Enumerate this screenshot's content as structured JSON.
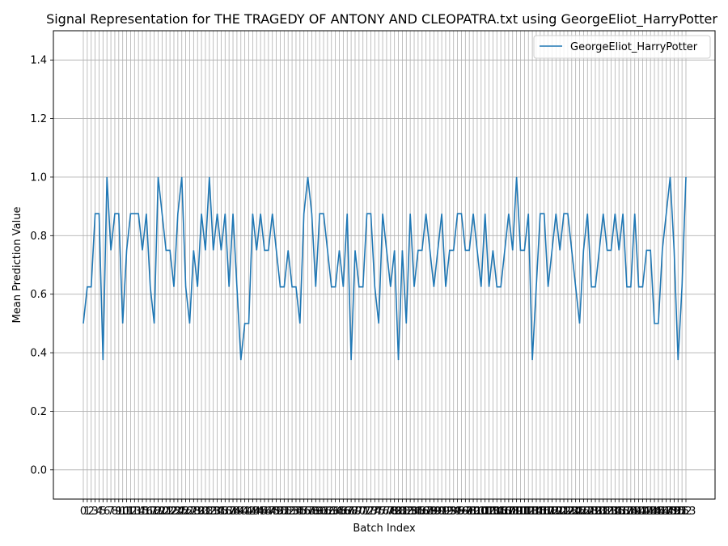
{
  "chart_data": {
    "type": "line",
    "title": "Signal Representation for THE TRAGEDY OF ANTONY AND CLEOPATRA.txt using GeorgeEliot_HarryPotter",
    "xlabel": "Batch Index",
    "ylabel": "Mean Prediction Value",
    "ylim": [
      -0.1,
      1.5
    ],
    "yticks": [
      "0.0",
      "0.2",
      "0.4",
      "0.6",
      "0.8",
      "1.0",
      "1.2",
      "1.4"
    ],
    "grid": true,
    "legend": "top-right",
    "color": "#1f77b4",
    "x_min": 0,
    "x_max": 153,
    "series": [
      {
        "name": "GeorgeEliot_HarryPotter",
        "values": [
          0.5,
          0.625,
          0.625,
          0.875,
          0.875,
          0.375,
          1.0,
          0.75,
          0.875,
          0.875,
          0.5,
          0.75,
          0.875,
          0.875,
          0.875,
          0.75,
          0.875,
          0.625,
          0.5,
          1.0,
          0.875,
          0.75,
          0.75,
          0.625,
          0.875,
          1.0,
          0.625,
          0.5,
          0.75,
          0.625,
          0.875,
          0.75,
          1.0,
          0.75,
          0.875,
          0.75,
          0.875,
          0.625,
          0.875,
          0.625,
          0.375,
          0.5,
          0.5,
          0.875,
          0.75,
          0.875,
          0.75,
          0.75,
          0.875,
          0.75,
          0.625,
          0.625,
          0.75,
          0.625,
          0.625,
          0.5,
          0.875,
          1.0,
          0.875,
          0.625,
          0.875,
          0.875,
          0.75,
          0.625,
          0.625,
          0.75,
          0.625,
          0.875,
          0.375,
          0.75,
          0.625,
          0.625,
          0.875,
          0.875,
          0.625,
          0.5,
          0.875,
          0.75,
          0.625,
          0.75,
          0.375,
          0.75,
          0.5,
          0.875,
          0.625,
          0.75,
          0.75,
          0.875,
          0.75,
          0.625,
          0.75,
          0.875,
          0.625,
          0.75,
          0.75,
          0.875,
          0.875,
          0.75,
          0.75,
          0.875,
          0.75,
          0.625,
          0.875,
          0.625,
          0.75,
          0.625,
          0.625,
          0.75,
          0.875,
          0.75,
          1.0,
          0.75,
          0.75,
          0.875,
          0.375,
          0.625,
          0.875,
          0.875,
          0.625,
          0.75,
          0.875,
          0.75,
          0.875,
          0.875,
          0.75,
          0.625,
          0.5,
          0.75,
          0.875,
          0.625,
          0.625,
          0.75,
          0.875,
          0.75,
          0.75,
          0.875,
          0.75,
          0.875,
          0.625,
          0.625,
          0.875,
          0.625,
          0.625,
          0.75,
          0.75,
          0.5,
          0.5,
          0.75,
          0.875,
          1.0,
          0.75,
          0.375,
          0.625,
          1.0
        ]
      }
    ],
    "xticks": [
      "0",
      "1",
      "2",
      "3",
      "4",
      "5",
      "6",
      "7",
      "8",
      "9",
      "10",
      "11",
      "12",
      "13",
      "14",
      "15",
      "16",
      "17",
      "18",
      "19",
      "20",
      "21",
      "22",
      "23",
      "24",
      "25",
      "26",
      "27",
      "28",
      "29",
      "30",
      "31",
      "32",
      "33",
      "34",
      "35",
      "36",
      "37",
      "38",
      "39",
      "40",
      "41",
      "42",
      "43",
      "44",
      "45",
      "46",
      "47",
      "48",
      "49",
      "50",
      "51",
      "52",
      "53",
      "54",
      "55",
      "56",
      "57",
      "58",
      "59",
      "60",
      "61",
      "62",
      "63",
      "64",
      "65",
      "66",
      "67",
      "68",
      "69",
      "70",
      "71",
      "72",
      "73",
      "74",
      "75",
      "76",
      "77",
      "78",
      "79",
      "80",
      "81",
      "82",
      "83",
      "84",
      "85",
      "86",
      "87",
      "88",
      "89",
      "90",
      "91",
      "92",
      "93",
      "94",
      "95",
      "96",
      "97",
      "98",
      "99",
      "100",
      "101",
      "102",
      "103",
      "104",
      "105",
      "106",
      "107",
      "108",
      "109",
      "110",
      "111",
      "112",
      "113",
      "114",
      "115",
      "116",
      "117",
      "118",
      "119",
      "120",
      "121",
      "122",
      "123",
      "124",
      "125",
      "126",
      "127",
      "128",
      "129",
      "130",
      "131",
      "132",
      "133",
      "134",
      "135",
      "136",
      "137",
      "138",
      "139",
      "140",
      "141",
      "142",
      "143",
      "144",
      "145",
      "146",
      "147",
      "148",
      "149",
      "150",
      "151",
      "152",
      "153"
    ]
  }
}
